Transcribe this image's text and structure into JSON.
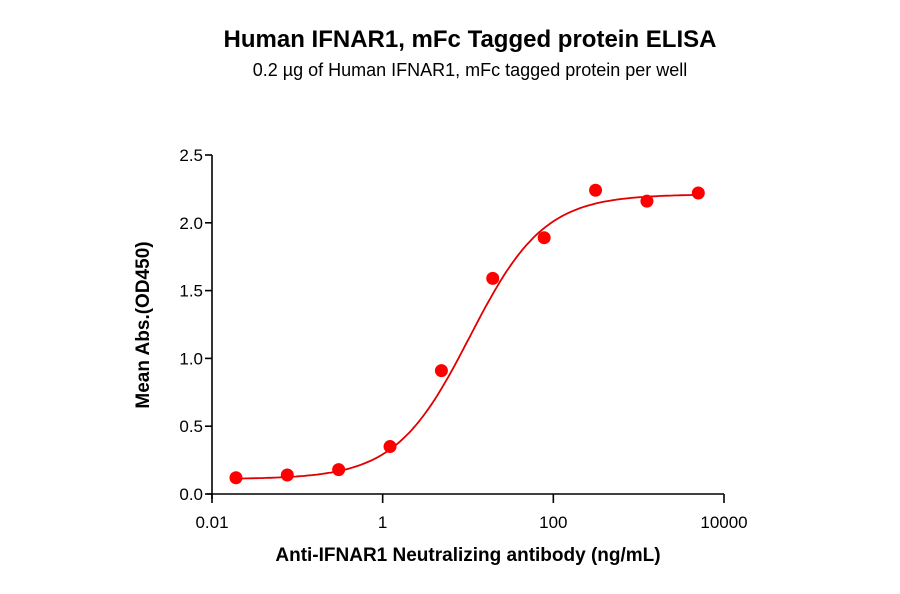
{
  "chart_data": {
    "type": "scatter",
    "title": "Human IFNAR1, mFc Tagged protein ELISA",
    "subtitle": "0.2 µg of Human IFNAR1, mFc tagged protein per well",
    "xlabel": "Anti-IFNAR1 Neutralizing antibody (ng/mL)",
    "ylabel": "Mean Abs.(OD450)",
    "xscale": "log",
    "xlim": [
      0.01,
      10000
    ],
    "ylim": [
      0,
      2.5
    ],
    "xticks": [
      "0.01",
      "1",
      "100",
      "10000"
    ],
    "yticks": [
      "0.0",
      "0.5",
      "1.0",
      "1.5",
      "2.0",
      "2.5"
    ],
    "grid": false,
    "legend": null,
    "series": [
      {
        "name": "Human IFNAR1, mFc",
        "color": "#ff0000",
        "marker": "circle",
        "x": [
          0.0191,
          0.0763,
          0.305,
          1.22,
          4.88,
          19.5,
          78.1,
          312.5,
          1250,
          5000
        ],
        "y": [
          0.12,
          0.14,
          0.18,
          0.35,
          0.91,
          1.59,
          1.89,
          2.24,
          2.16,
          2.22
        ],
        "fit": "4-parameter logistic",
        "fit_params": {
          "bottom": 0.11,
          "top": 2.21,
          "ec50": 10.5,
          "hill": 1.0
        }
      }
    ]
  }
}
